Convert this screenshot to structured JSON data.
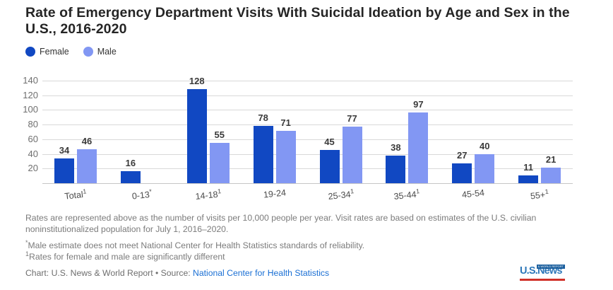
{
  "title": "Rate of Emergency Department Visits With Suicidal Ideation by Age and Sex in the U.S., 2016-2020",
  "legend": {
    "items": [
      {
        "label": "Female"
      },
      {
        "label": "Male"
      }
    ]
  },
  "colors": {
    "female": "#1148c2",
    "male": "#8297f3",
    "grid": "#d9d9d9",
    "axis": "#c6c6c6",
    "link": "#1a6fd4",
    "logo_blue": "#2d77b9",
    "logo_box_blue": "#1b5f9e",
    "logo_red": "#d03028"
  },
  "chart_data": {
    "type": "bar",
    "title": "Rate of Emergency Department Visits With Suicidal Ideation by Age and Sex in the U.S., 2016-2020",
    "categories": [
      "Total",
      "0-13",
      "14-18",
      "19-24",
      "25-34",
      "35-44",
      "45-54",
      "55+"
    ],
    "category_marks": [
      "1",
      "*",
      "1",
      "",
      "1",
      "1",
      "",
      "1"
    ],
    "series": [
      {
        "name": "Female",
        "values": [
          34,
          16,
          128,
          78,
          45,
          38,
          27,
          11
        ]
      },
      {
        "name": "Male",
        "values": [
          46,
          null,
          55,
          71,
          77,
          97,
          40,
          21
        ]
      }
    ],
    "ylim": [
      0,
      140
    ],
    "yticks": [
      20,
      40,
      60,
      80,
      100,
      120,
      140
    ],
    "grid": "horizontal",
    "legend_position": "top-left",
    "value_labels": true,
    "units": "visits per 10,000 people per year"
  },
  "footnotes": {
    "note": "Rates are represented above as the number of visits per 10,000 people per year. Visit rates are based on estimates of the U.S. civilian noninstitutionalized population for July 1, 2016–2020.",
    "asterisk_mark": "*",
    "asterisk": "Male estimate does not meet National Center for Health Statistics standards of reliability.",
    "sig_mark": "1",
    "sig": "Rates for female and male are significantly different"
  },
  "credit": {
    "prefix": "Chart: U.S. News & World Report • Source: ",
    "source_link": "National Center for Health Statistics"
  },
  "logo": {
    "main": "U.S.News",
    "sub": "& WORLD REPORT"
  }
}
